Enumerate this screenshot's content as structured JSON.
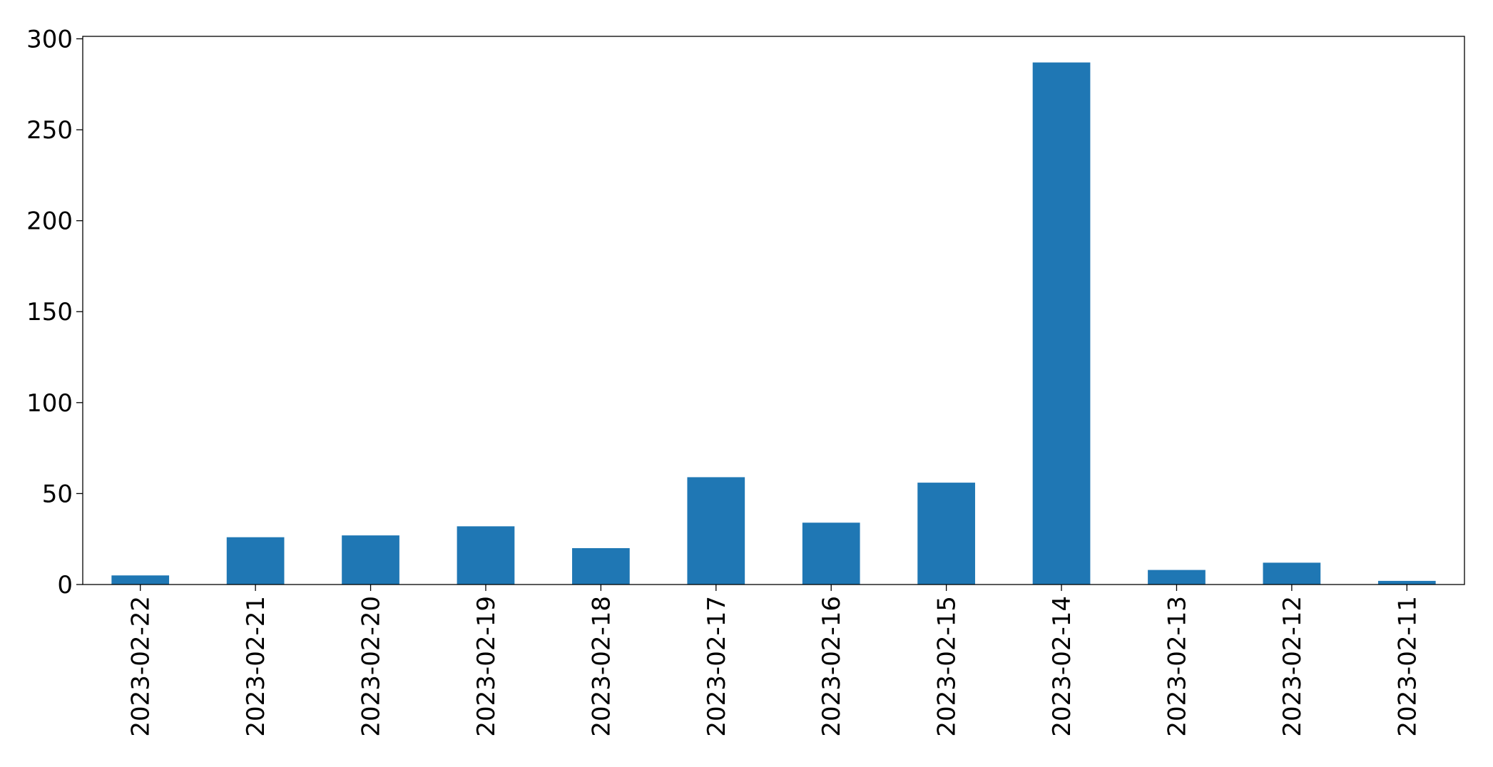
{
  "chart_data": {
    "type": "bar",
    "categories": [
      "2023-02-22",
      "2023-02-21",
      "2023-02-20",
      "2023-02-19",
      "2023-02-18",
      "2023-02-17",
      "2023-02-16",
      "2023-02-15",
      "2023-02-14",
      "2023-02-13",
      "2023-02-12",
      "2023-02-11"
    ],
    "values": [
      5,
      26,
      27,
      32,
      20,
      59,
      34,
      56,
      287,
      8,
      12,
      2
    ],
    "color": "#1f77b4",
    "ylim": [
      0,
      301.35
    ],
    "yticks": [
      0,
      50,
      100,
      150,
      200,
      250,
      300
    ],
    "grid": false
  }
}
